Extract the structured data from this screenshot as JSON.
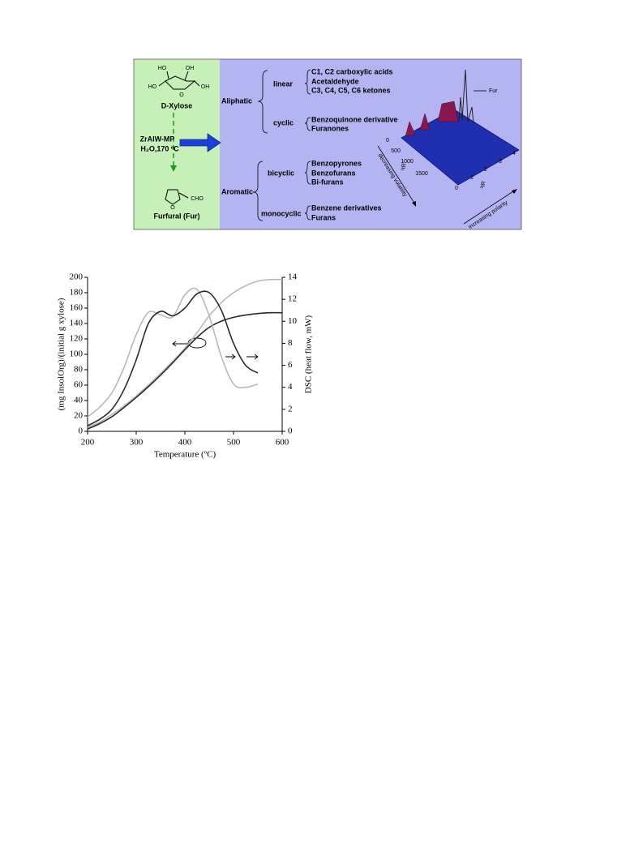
{
  "scheme": {
    "reactant": "D-Xylose",
    "reactant_atoms": [
      "HO",
      "OH",
      "HO",
      "OH",
      "O"
    ],
    "catalyst": "ZrAlW-MP",
    "conditions": "H₂O,170 ºC",
    "product": "Furfural (Fur)",
    "product_atoms": [
      "O",
      "CHO"
    ],
    "classes": [
      {
        "name": "Aliphatic",
        "groups": [
          {
            "name": "linear",
            "compounds": [
              "C1, C2 carboxylic acids",
              "Acetaldehyde",
              "C3, C4, C5, C6 ketones"
            ]
          },
          {
            "name": "cyclic",
            "compounds": [
              "Benzoquinone derivative",
              "Furanones"
            ]
          }
        ]
      },
      {
        "name": "Aromatic",
        "groups": [
          {
            "name": "bicyclic",
            "compounds": [
              "Benzopyrones",
              "Benzofurans",
              "Bi-furans"
            ]
          },
          {
            "name": "monocyclic",
            "compounds": [
              "Benzene derivatives",
              "Furans"
            ]
          }
        ]
      }
    ],
    "plot3d": {
      "peak_label": "Fur",
      "axis1_label": "¹tR",
      "axis1_ticks": [
        0,
        500,
        1000,
        1500
      ],
      "axis2_label": "²tR",
      "axis2_ticks": [
        0,
        1,
        2,
        3,
        4
      ],
      "arrow1": "decreasing volatility",
      "arrow2": "increasing polarity"
    }
  },
  "chart_data": {
    "type": "line",
    "xlabel": "Temperature (ºC)",
    "ylabel": "(mg InsolOrg)/(initial g xylose)",
    "y2label": "DSC (heat flow, mW)",
    "x": [
      200,
      225,
      250,
      275,
      300,
      325,
      350,
      375,
      400,
      425,
      450,
      475,
      500,
      525,
      550,
      575,
      600
    ],
    "series": [
      {
        "color": "#b8b8b8",
        "values": [
          5,
          12,
          22,
          33,
          46,
          60,
          75,
          91,
          108,
          128,
          150,
          167,
          180,
          189,
          195,
          197,
          197
        ]
      },
      {
        "color": "#2a2a2a",
        "values": [
          3,
          10,
          19,
          31,
          44,
          58,
          73,
          89,
          106,
          122,
          135,
          143,
          148,
          151,
          153,
          154,
          154
        ]
      },
      {
        "color": "#b8b8b8",
        "axis": "y2",
        "values": [
          1.3,
          2.2,
          3.5,
          5.8,
          8.8,
          10.8,
          10.6,
          10.4,
          12.4,
          12.9,
          10.5,
          6.8,
          4.3,
          4.0,
          4.3,
          null,
          null
        ]
      },
      {
        "color": "#2a2a2a",
        "axis": "y2",
        "values": [
          0.5,
          1.1,
          2.0,
          3.8,
          6.5,
          9.8,
          10.9,
          10.5,
          11.2,
          12.5,
          12.6,
          11.0,
          8.0,
          6.0,
          5.3,
          null,
          null
        ]
      }
    ],
    "xlim": [
      200,
      600
    ],
    "xticks": [
      200,
      300,
      400,
      500,
      600
    ],
    "ylim": [
      0,
      200
    ],
    "yticks": [
      0,
      20,
      40,
      60,
      80,
      100,
      120,
      140,
      160,
      180,
      200
    ],
    "y2lim": [
      0,
      14
    ],
    "y2ticks": [
      0,
      2,
      4,
      6,
      8,
      10,
      12,
      14
    ]
  }
}
